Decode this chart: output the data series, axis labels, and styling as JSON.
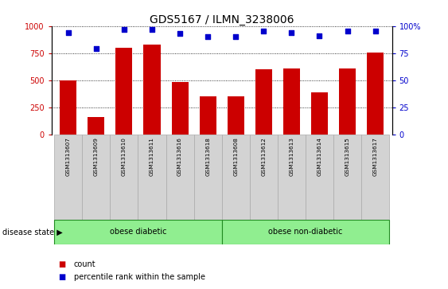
{
  "title": "GDS5167 / ILMN_3238006",
  "samples": [
    "GSM1313607",
    "GSM1313609",
    "GSM1313610",
    "GSM1313611",
    "GSM1313616",
    "GSM1313618",
    "GSM1313608",
    "GSM1313612",
    "GSM1313613",
    "GSM1313614",
    "GSM1313615",
    "GSM1313617"
  ],
  "counts": [
    500,
    160,
    800,
    830,
    480,
    350,
    350,
    600,
    610,
    390,
    610,
    755
  ],
  "percentiles": [
    94,
    79,
    97,
    97,
    93,
    90,
    90,
    95,
    94,
    91,
    95,
    95
  ],
  "group1_label": "obese diabetic",
  "group2_label": "obese non-diabetic",
  "group1_count": 6,
  "group2_count": 6,
  "bar_color": "#cc0000",
  "dot_color": "#0000cc",
  "ylim_left": [
    0,
    1000
  ],
  "ylim_right": [
    0,
    100
  ],
  "yticks_left": [
    0,
    250,
    500,
    750,
    1000
  ],
  "ytick_labels_left": [
    "0",
    "250",
    "500",
    "750",
    "1000"
  ],
  "yticks_right": [
    0,
    25,
    50,
    75,
    100
  ],
  "ytick_labels_right": [
    "0",
    "25",
    "50",
    "75",
    "100%"
  ],
  "group_bg_color": "#90ee90",
  "group_border_color": "#228B22",
  "sample_bg_color": "#d3d3d3",
  "sample_border_color": "#aaaaaa",
  "disease_state_label": "disease state",
  "legend_count_label": "count",
  "legend_percentile_label": "percentile rank within the sample",
  "bg_white": "#ffffff"
}
